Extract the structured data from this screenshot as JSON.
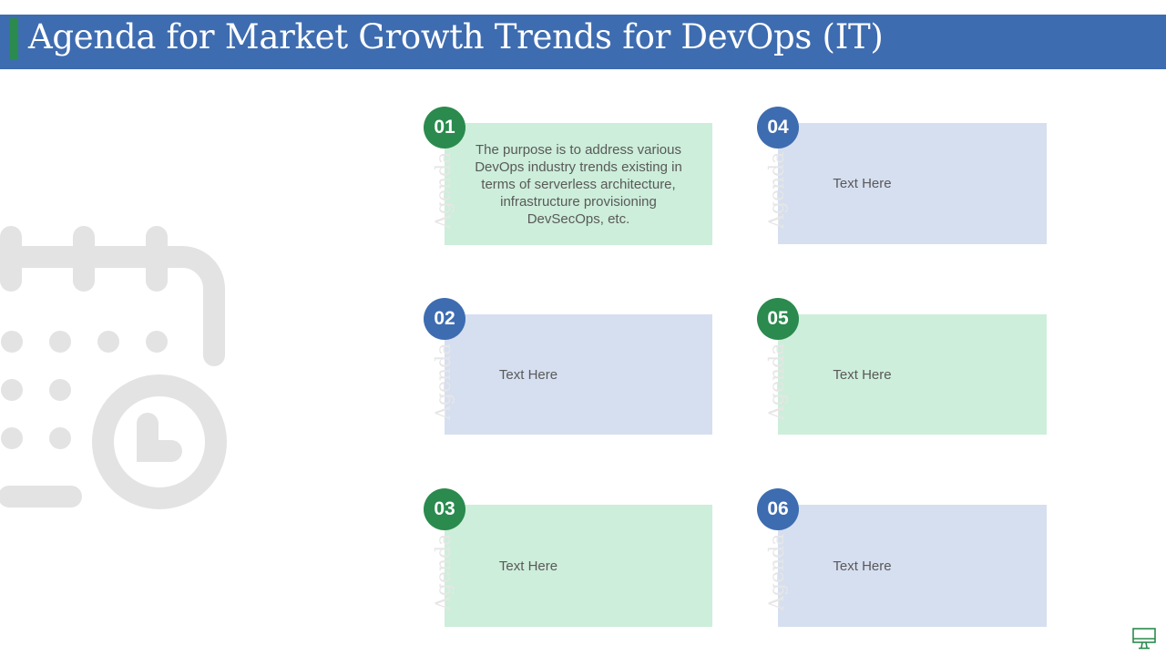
{
  "title": "Agenda for Market Growth Trends for DevOps (IT)",
  "colors": {
    "blue": "#3e6cb0",
    "green": "#2b8a4e",
    "light_green": "#cdeeda",
    "light_blue": "#d6dff0"
  },
  "decor": {
    "icon": "calendar-clock-icon"
  },
  "cards": [
    {
      "number": "01",
      "label": "Agenda",
      "text": "The purpose is to address various DevOps industry trends existing in terms of serverless architecture, infrastructure  provisioning DevSecOps, etc."
    },
    {
      "number": "02",
      "label": "Agenda",
      "text": "Text Here"
    },
    {
      "number": "03",
      "label": "Agenda",
      "text": "Text Here"
    },
    {
      "number": "04",
      "label": "Agenda",
      "text": "Text Here"
    },
    {
      "number": "05",
      "label": "Agenda",
      "text": "Text Here"
    },
    {
      "number": "06",
      "label": "Agenda",
      "text": "Text Here"
    }
  ],
  "footer": {
    "icon": "monitor-icon"
  }
}
